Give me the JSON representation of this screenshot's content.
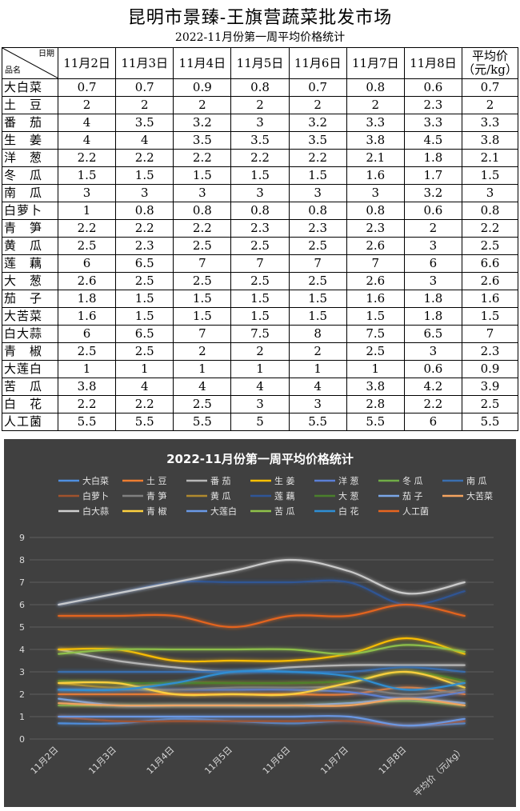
{
  "title": "昆明市景臻-王旗营蔬菜批发市场",
  "subtitle": "2022-11月份第一周平均价格统计",
  "table": {
    "corner_date": "日期",
    "corner_name": "品名",
    "columns": [
      "11月2日",
      "11月3日",
      "11月4日",
      "11月5日",
      "11月6日",
      "11月7日",
      "11月8日"
    ],
    "avg_header_line1": "平均价",
    "avg_header_line2": "（元/kg）",
    "rows": [
      {
        "name": "大白菜",
        "values": [
          "0.7",
          "0.7",
          "0.9",
          "0.8",
          "0.7",
          "0.8",
          "0.6"
        ],
        "avg": "0.7"
      },
      {
        "name": "土　豆",
        "values": [
          "2",
          "2",
          "2",
          "2",
          "2",
          "2",
          "2.3"
        ],
        "avg": "2"
      },
      {
        "name": "番　茄",
        "values": [
          "4",
          "3.5",
          "3.2",
          "3",
          "3.2",
          "3.3",
          "3.3"
        ],
        "avg": "3.3"
      },
      {
        "name": "生　姜",
        "values": [
          "4",
          "4",
          "3.5",
          "3.5",
          "3.5",
          "3.8",
          "4.5"
        ],
        "avg": "3.8"
      },
      {
        "name": "洋　葱",
        "values": [
          "2.2",
          "2.2",
          "2.2",
          "2.2",
          "2.2",
          "2.1",
          "1.8"
        ],
        "avg": "2.1"
      },
      {
        "name": "冬　瓜",
        "values": [
          "1.5",
          "1.5",
          "1.5",
          "1.5",
          "1.5",
          "1.6",
          "1.7"
        ],
        "avg": "1.5"
      },
      {
        "name": "南　瓜",
        "values": [
          "3",
          "3",
          "3",
          "3",
          "3",
          "3",
          "3.2"
        ],
        "avg": "3"
      },
      {
        "name": "白萝卜",
        "values": [
          "1",
          "0.8",
          "0.8",
          "0.8",
          "0.8",
          "0.8",
          "0.6"
        ],
        "avg": "0.8"
      },
      {
        "name": "青　笋",
        "values": [
          "2.2",
          "2.2",
          "2.2",
          "2.3",
          "2.3",
          "2.3",
          "2"
        ],
        "avg": "2.2"
      },
      {
        "name": "黄　瓜",
        "values": [
          "2.5",
          "2.3",
          "2.5",
          "2.5",
          "2.5",
          "2.6",
          "3"
        ],
        "avg": "2.5"
      },
      {
        "name": "莲　藕",
        "values": [
          "6",
          "6.5",
          "7",
          "7",
          "7",
          "7",
          "6"
        ],
        "avg": "6.6"
      },
      {
        "name": "大　葱",
        "values": [
          "2.6",
          "2.5",
          "2.5",
          "2.5",
          "2.5",
          "2.6",
          "3"
        ],
        "avg": "2.6"
      },
      {
        "name": "茄　子",
        "values": [
          "1.8",
          "1.5",
          "1.5",
          "1.5",
          "1.5",
          "1.6",
          "1.8"
        ],
        "avg": "1.6"
      },
      {
        "name": "大苦菜",
        "values": [
          "1.6",
          "1.5",
          "1.5",
          "1.5",
          "1.5",
          "1.5",
          "1.8"
        ],
        "avg": "1.5"
      },
      {
        "name": "白大蒜",
        "values": [
          "6",
          "6.5",
          "7",
          "7.5",
          "8",
          "7.5",
          "6.5"
        ],
        "avg": "7"
      },
      {
        "name": "青　椒",
        "values": [
          "2.5",
          "2.5",
          "2",
          "2",
          "2",
          "2.5",
          "3"
        ],
        "avg": "2.3"
      },
      {
        "name": "大莲白",
        "values": [
          "1",
          "1",
          "1",
          "1",
          "1",
          "1",
          "0.6"
        ],
        "avg": "0.9"
      },
      {
        "name": "苦　瓜",
        "values": [
          "3.8",
          "4",
          "4",
          "4",
          "4",
          "3.8",
          "4.2"
        ],
        "avg": "3.9"
      },
      {
        "name": "白　花",
        "values": [
          "2.2",
          "2.2",
          "2.5",
          "3",
          "3",
          "2.8",
          "2.2"
        ],
        "avg": "2.5"
      },
      {
        "name": "人工菌",
        "values": [
          "5.5",
          "5.5",
          "5.5",
          "5",
          "5.5",
          "5.5",
          "6"
        ],
        "avg": "5.5"
      }
    ]
  },
  "chart_data": {
    "type": "line",
    "title": "2022-11月份第一周平均价格统计",
    "categories": [
      "11月2日",
      "11月3日",
      "11月4日",
      "11月5日",
      "11月6日",
      "11月7日",
      "11月8日",
      "平均价（元/kg）"
    ],
    "ylim": [
      0,
      9
    ],
    "yticks": [
      "0",
      "1",
      "2",
      "3",
      "4",
      "5",
      "6",
      "7",
      "8",
      "9"
    ],
    "grid": true,
    "legend_position": "top",
    "series": [
      {
        "name": "大白菜",
        "color": "#4f8fe0",
        "values": [
          0.7,
          0.7,
          0.9,
          0.8,
          0.7,
          0.8,
          0.6,
          0.7
        ]
      },
      {
        "name": "土 豆",
        "color": "#ee7d31",
        "values": [
          2,
          2,
          2,
          2,
          2,
          2,
          2.3,
          2
        ]
      },
      {
        "name": "番 茄",
        "color": "#b8b8b8",
        "values": [
          4,
          3.5,
          3.2,
          3,
          3.2,
          3.3,
          3.3,
          3.3
        ]
      },
      {
        "name": "生 姜",
        "color": "#ffc000",
        "values": [
          4,
          4,
          3.5,
          3.5,
          3.5,
          3.8,
          4.5,
          3.8
        ]
      },
      {
        "name": "洋 葱",
        "color": "#5b7fd6",
        "values": [
          2.2,
          2.2,
          2.2,
          2.2,
          2.2,
          2.1,
          1.8,
          2.1
        ]
      },
      {
        "name": "冬 瓜",
        "color": "#70ad47",
        "values": [
          1.5,
          1.5,
          1.5,
          1.5,
          1.5,
          1.6,
          1.7,
          1.5
        ]
      },
      {
        "name": "南 瓜",
        "color": "#3a6fb0",
        "values": [
          3,
          3,
          3,
          3,
          3,
          3,
          3.2,
          3
        ]
      },
      {
        "name": "白萝卜",
        "color": "#a0522d",
        "values": [
          1,
          0.8,
          0.8,
          0.8,
          0.8,
          0.8,
          0.6,
          0.8
        ]
      },
      {
        "name": "青 笋",
        "color": "#808080",
        "values": [
          2.2,
          2.2,
          2.2,
          2.3,
          2.3,
          2.3,
          2,
          2.2
        ]
      },
      {
        "name": "黄 瓜",
        "color": "#b08a2e",
        "values": [
          2.5,
          2.3,
          2.5,
          2.5,
          2.5,
          2.6,
          3,
          2.5
        ]
      },
      {
        "name": "莲 藕",
        "color": "#2f5597",
        "values": [
          6,
          6.5,
          7,
          7,
          7,
          7,
          6,
          6.6
        ]
      },
      {
        "name": "大 葱",
        "color": "#4a7f2c",
        "values": [
          2.6,
          2.5,
          2.5,
          2.5,
          2.5,
          2.6,
          3,
          2.6
        ]
      },
      {
        "name": "茄 子",
        "color": "#7aa6e6",
        "values": [
          1.8,
          1.5,
          1.5,
          1.5,
          1.5,
          1.6,
          1.8,
          1.6
        ]
      },
      {
        "name": "大苦菜",
        "color": "#f4a460",
        "values": [
          1.6,
          1.5,
          1.5,
          1.5,
          1.5,
          1.5,
          1.8,
          1.5
        ]
      },
      {
        "name": "白大蒜",
        "color": "#cfcfcf",
        "values": [
          6,
          6.5,
          7,
          7.5,
          8,
          7.5,
          6.5,
          7
        ]
      },
      {
        "name": "青 椒",
        "color": "#ffd23f",
        "values": [
          2.5,
          2.5,
          2,
          2,
          2,
          2.5,
          3,
          2.3
        ]
      },
      {
        "name": "大莲白",
        "color": "#6a9ae8",
        "values": [
          1,
          1,
          1,
          1,
          1,
          1,
          0.6,
          0.9
        ]
      },
      {
        "name": "苦 瓜",
        "color": "#8fc34a",
        "values": [
          3.8,
          4,
          4,
          4,
          4,
          3.8,
          4.2,
          3.9
        ]
      },
      {
        "name": "白 花",
        "color": "#2e8fd6",
        "values": [
          2.2,
          2.2,
          2.5,
          3,
          3,
          2.8,
          2.2,
          2.5
        ]
      },
      {
        "name": "人工菌",
        "color": "#e8651f",
        "values": [
          5.5,
          5.5,
          5.5,
          5,
          5.5,
          5.5,
          6,
          5.5
        ]
      }
    ]
  }
}
